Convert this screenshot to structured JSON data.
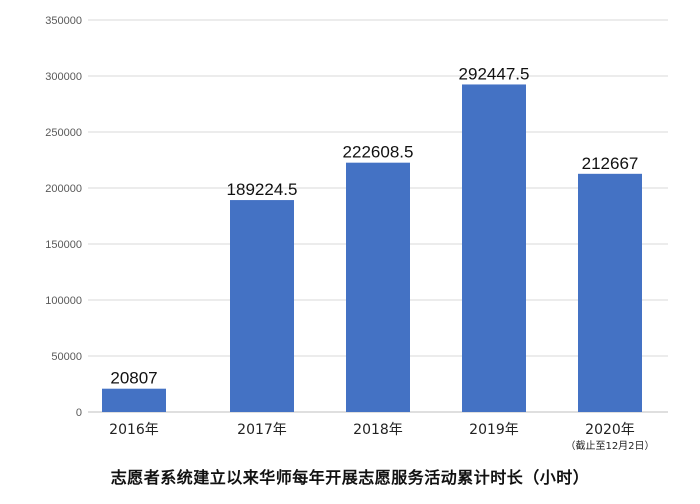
{
  "chart_data": {
    "type": "bar",
    "title": "志愿者系统建立以来华师每年开展志愿服务活动累计时长（小时）",
    "categories": [
      "2016年",
      "2017年",
      "2018年",
      "2019年",
      "2020年"
    ],
    "category_notes": [
      "",
      "",
      "",
      "",
      "（截止至12月2日）"
    ],
    "values": [
      20807,
      189224.5,
      222608.5,
      292447.5,
      212667
    ],
    "data_labels": [
      "20807",
      "189224.5",
      "222608.5",
      "292447.5",
      "212667"
    ],
    "yticks": [
      "0",
      "50000",
      "100000",
      "150000",
      "200000",
      "250000",
      "300000",
      "350000"
    ],
    "ylim": [
      0,
      350000
    ],
    "grid": true,
    "bar_color": "#4472C4",
    "grid_color": "#D9D9D9"
  }
}
